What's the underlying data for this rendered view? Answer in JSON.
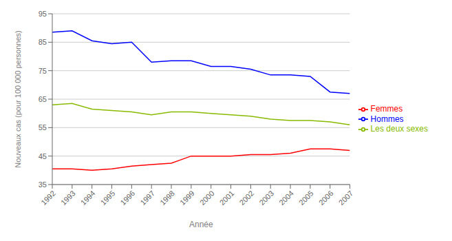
{
  "chart_data": {
    "type": "line",
    "x": [
      1992,
      1993,
      1994,
      1995,
      1996,
      1997,
      1998,
      1999,
      2000,
      2001,
      2002,
      2003,
      2004,
      2005,
      2006,
      2007
    ],
    "xlim": [
      1992,
      2007
    ],
    "xticks": [
      1992,
      1993,
      1994,
      1995,
      1996,
      1997,
      1998,
      1999,
      2000,
      2001,
      2002,
      2003,
      2004,
      2005,
      2006,
      2007
    ],
    "ylim": [
      35,
      95
    ],
    "yticks": [
      35,
      45,
      55,
      65,
      75,
      85,
      95
    ],
    "xlabel": "Année",
    "ylabel": "Nouveaux cas (pour 100 000 personnes)",
    "grid": true,
    "legend": "right",
    "series": [
      {
        "name": "Les deux sexes",
        "color": "#88BB00",
        "values": [
          63.0,
          63.5,
          61.5,
          61.0,
          60.5,
          59.5,
          60.5,
          60.5,
          60.0,
          59.5,
          59.0,
          58.0,
          57.5,
          57.5,
          57.0,
          56.0
        ]
      },
      {
        "name": "Hommes",
        "color": "#0000FF",
        "values": [
          88.5,
          89.0,
          85.5,
          84.5,
          85.0,
          78.0,
          78.5,
          78.5,
          76.5,
          76.5,
          75.5,
          73.5,
          73.5,
          73.0,
          67.5,
          67.0
        ]
      },
      {
        "name": "Femmes",
        "color": "#FF0000",
        "values": [
          40.5,
          40.5,
          40.0,
          40.5,
          41.5,
          42.0,
          42.5,
          45.0,
          45.0,
          45.0,
          45.5,
          45.5,
          46.0,
          47.5,
          47.5,
          47.0
        ]
      }
    ]
  }
}
